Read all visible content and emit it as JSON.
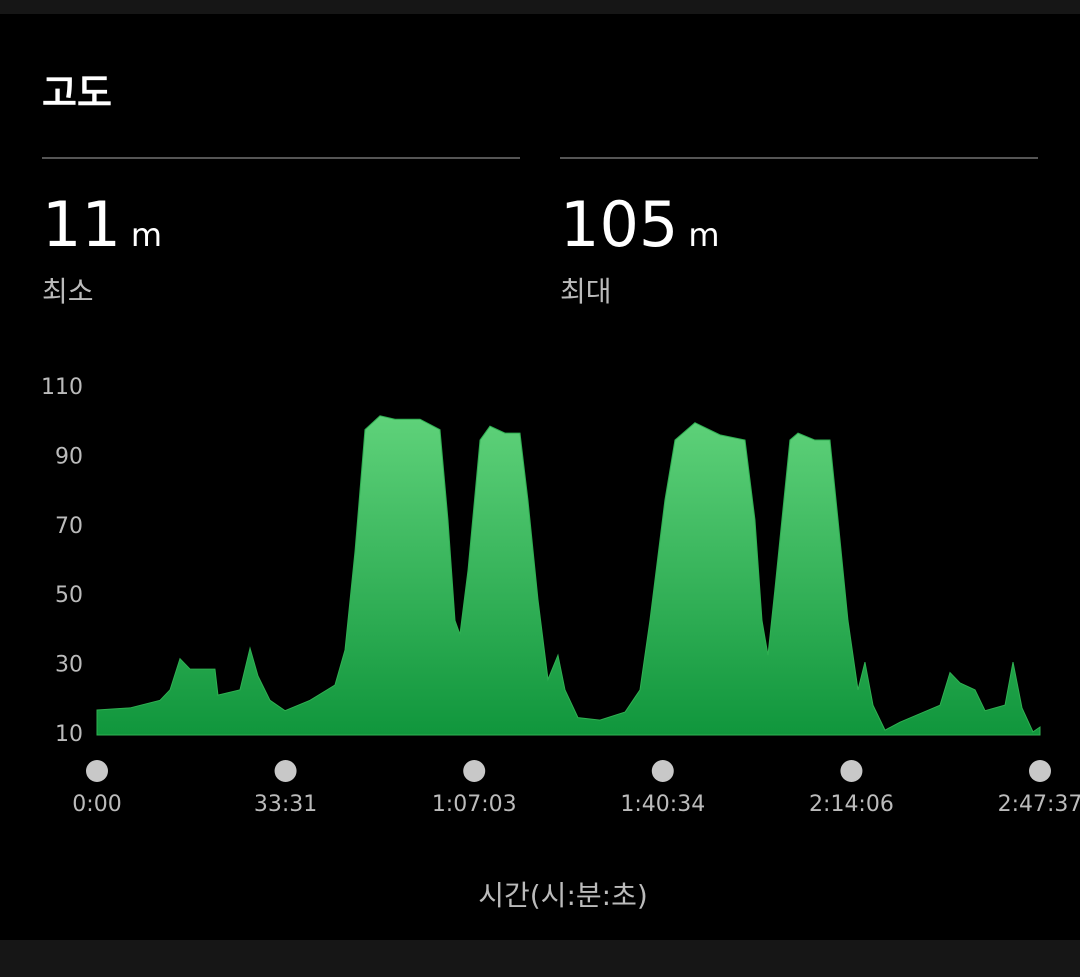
{
  "title": "고도",
  "stats": [
    {
      "value": 11,
      "unit": "m",
      "label": "최소"
    },
    {
      "value": 105,
      "unit": "m",
      "label": "최대"
    }
  ],
  "chart_data": {
    "type": "area",
    "x": [
      0,
      352,
      672,
      779,
      885,
      992,
      1258,
      1290,
      1525,
      1632,
      1717,
      1845,
      2005,
      2272,
      2538,
      2645,
      2752,
      2858,
      3018,
      3178,
      3445,
      3658,
      3743,
      3818,
      3871,
      3957,
      4085,
      4191,
      4351,
      4511,
      4596,
      4703,
      4810,
      4916,
      4991,
      5130,
      5364,
      5631,
      5791,
      5897,
      6057,
      6164,
      6377,
      6644,
      6911,
      7017,
      7092,
      7156,
      7230,
      7390,
      7476,
      7657,
      7817,
      7903,
      8009,
      8116,
      8190,
      8276,
      8404,
      8564,
      8991,
      9097,
      9204,
      9364,
      9471,
      9684,
      9769,
      9865,
      9982,
      10057
    ],
    "values": [
      17.2,
      17.8,
      20,
      23,
      32,
      29,
      29,
      21.5,
      23,
      35,
      27,
      20,
      17,
      20,
      24.4,
      34.5,
      63,
      98,
      102,
      101,
      101,
      98,
      72,
      43,
      39,
      57.5,
      95,
      99,
      97,
      97,
      77.7,
      49,
      26,
      33,
      23,
      15,
      14.3,
      16.6,
      23,
      43,
      77.7,
      95,
      100,
      96.5,
      95,
      72,
      43,
      33,
      52,
      95,
      97,
      95,
      95,
      72,
      43,
      23,
      31,
      18.6,
      11.4,
      13.7,
      18.6,
      28,
      25,
      23,
      17,
      18.6,
      31,
      17.8,
      10.9,
      12.3
    ],
    "color": "#2fb052",
    "xlim": [
      0,
      10057
    ],
    "xticks": [
      {
        "value": 0,
        "label": "0:00"
      },
      {
        "value": 2011,
        "label": "33:31"
      },
      {
        "value": 4023,
        "label": "1:07:03"
      },
      {
        "value": 6034,
        "label": "1:40:34"
      },
      {
        "value": 8046,
        "label": "2:14:06"
      },
      {
        "value": 10057,
        "label": "2:47:37"
      }
    ],
    "ylim": [
      10,
      110
    ],
    "yticks": [
      10,
      30,
      50,
      70,
      90,
      110
    ],
    "x_label": "시간(시:분:초)"
  }
}
